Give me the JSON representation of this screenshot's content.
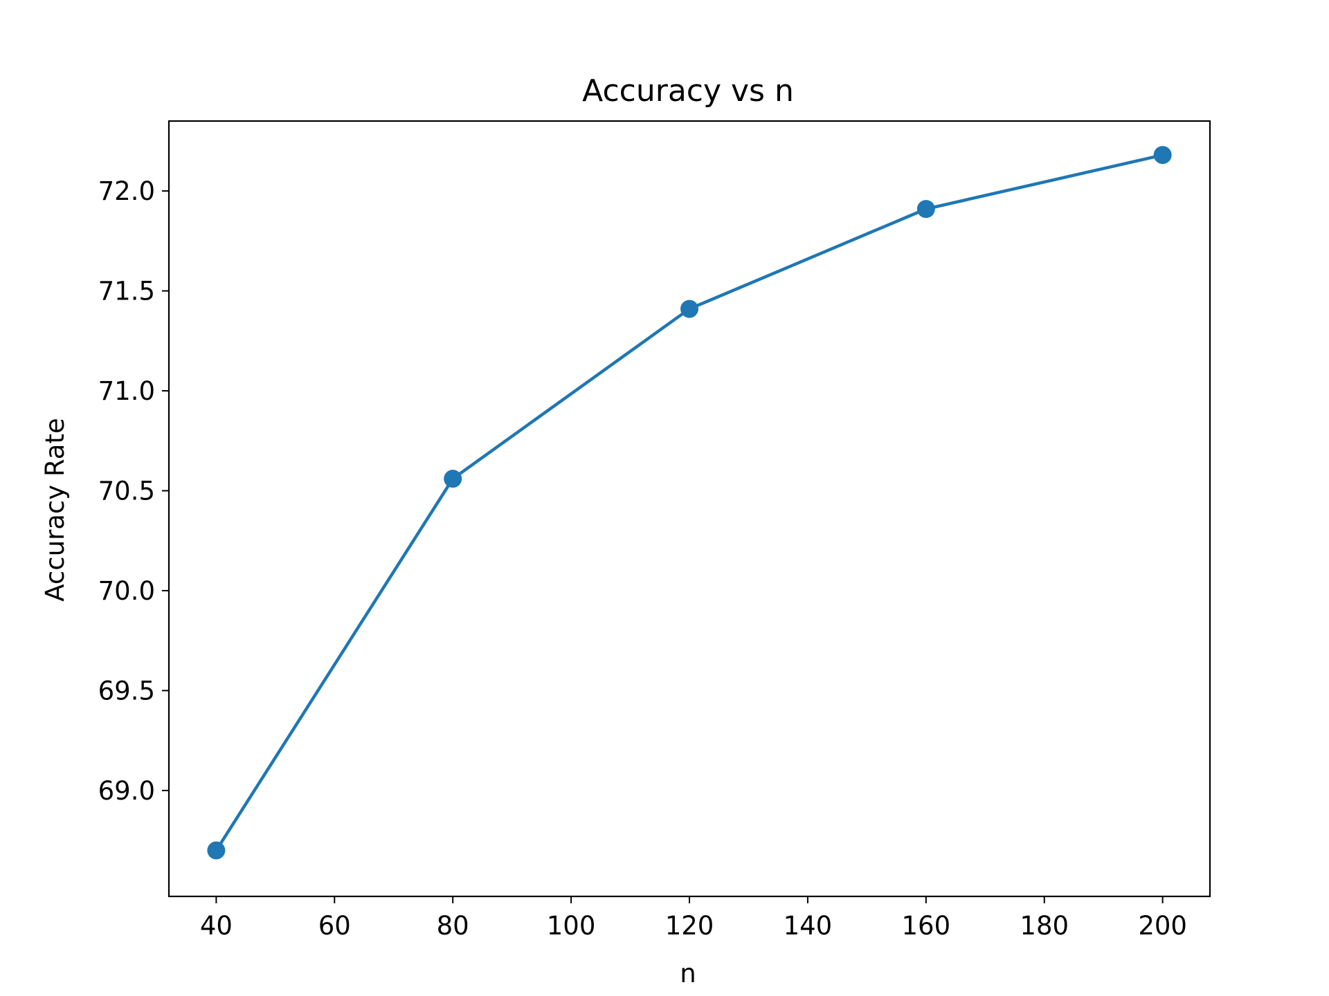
{
  "chart_data": {
    "type": "line",
    "title": "Accuracy vs n",
    "xlabel": "n",
    "ylabel": "Accuracy Rate",
    "x": [
      40,
      80,
      120,
      160,
      200
    ],
    "series": [
      {
        "values": [
          68.7,
          70.56,
          71.41,
          71.91,
          72.18
        ]
      }
    ],
    "xlim": [
      32,
      208
    ],
    "ylim": [
      68.47,
      72.35
    ],
    "xticks": [
      40,
      60,
      80,
      100,
      120,
      140,
      160,
      180,
      200
    ],
    "xtick_labels": [
      "40",
      "60",
      "80",
      "100",
      "120",
      "140",
      "160",
      "180",
      "200"
    ],
    "yticks": [
      69.0,
      69.5,
      70.0,
      70.5,
      71.0,
      71.5,
      72.0
    ],
    "ytick_labels": [
      "69.0",
      "69.5",
      "70.0",
      "70.5",
      "71.0",
      "71.5",
      "72.0"
    ],
    "grid": false,
    "colors": {
      "line": "#1f77b4",
      "marker": "#1f77b4",
      "axes": "#000000"
    }
  }
}
